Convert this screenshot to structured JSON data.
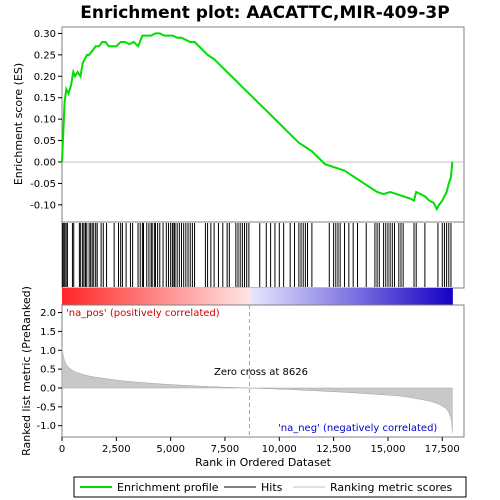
{
  "chart_data": {
    "type": "line",
    "title": "Enrichment plot: AACATTC,MIR-409-3P",
    "es_panel": {
      "ylabel": "Enrichment score (ES)",
      "yticks": [
        0.3,
        0.25,
        0.2,
        0.15,
        0.1,
        0.05,
        0.0,
        -0.05,
        -0.1
      ],
      "ytick_labels": [
        "0.30",
        "0.25",
        "0.20",
        "0.15",
        "0.10",
        "0.05",
        "0.00",
        "-0.05",
        "-0.10"
      ],
      "ylim": [
        -0.14,
        0.315
      ],
      "series": [
        {
          "name": "Enrichment profile",
          "color": "#00dd00",
          "x": [
            0,
            60,
            120,
            200,
            300,
            420,
            520,
            600,
            720,
            850,
            950,
            1050,
            1150,
            1250,
            1400,
            1550,
            1700,
            1850,
            2000,
            2150,
            2300,
            2500,
            2700,
            2900,
            3100,
            3300,
            3500,
            3700,
            3900,
            4100,
            4300,
            4500,
            4700,
            4900,
            5100,
            5300,
            5500,
            5700,
            5900,
            6100,
            6400,
            6700,
            7000,
            7300,
            7600,
            7900,
            8200,
            8500,
            8800,
            9100,
            9400,
            9700,
            10000,
            10300,
            10600,
            10900,
            11200,
            11500,
            11800,
            12100,
            12400,
            12700,
            13000,
            13300,
            13600,
            13900,
            14200,
            14500,
            14800,
            15100,
            15400,
            15700,
            16000,
            16200,
            16300,
            16500,
            16700,
            16900,
            17100,
            17250,
            17350,
            17500,
            17600,
            17700,
            17800,
            17900,
            17960
          ],
          "values": [
            0.0,
            0.07,
            0.14,
            0.17,
            0.16,
            0.18,
            0.21,
            0.2,
            0.21,
            0.2,
            0.23,
            0.24,
            0.25,
            0.25,
            0.26,
            0.27,
            0.27,
            0.28,
            0.28,
            0.27,
            0.27,
            0.27,
            0.28,
            0.28,
            0.275,
            0.28,
            0.27,
            0.295,
            0.295,
            0.295,
            0.3,
            0.3,
            0.295,
            0.295,
            0.295,
            0.29,
            0.29,
            0.285,
            0.28,
            0.28,
            0.265,
            0.25,
            0.24,
            0.225,
            0.21,
            0.195,
            0.18,
            0.165,
            0.15,
            0.135,
            0.12,
            0.105,
            0.09,
            0.075,
            0.06,
            0.045,
            0.035,
            0.025,
            0.01,
            -0.005,
            -0.01,
            -0.015,
            -0.02,
            -0.03,
            -0.04,
            -0.05,
            -0.06,
            -0.07,
            -0.075,
            -0.07,
            -0.075,
            -0.08,
            -0.085,
            -0.09,
            -0.07,
            -0.075,
            -0.08,
            -0.09,
            -0.095,
            -0.11,
            -0.1,
            -0.09,
            -0.08,
            -0.07,
            -0.05,
            -0.035,
            0.0
          ]
        }
      ]
    },
    "hits_panel": {
      "legend_label": "Hits",
      "hit_positions": [
        30,
        80,
        130,
        190,
        250,
        480,
        540,
        800,
        860,
        950,
        1010,
        1080,
        1140,
        1250,
        1320,
        1390,
        1460,
        1550,
        1620,
        1800,
        1900,
        2050,
        2400,
        2600,
        2700,
        2780,
        2950,
        3150,
        3250,
        3500,
        3600,
        3700,
        3750,
        3900,
        4000,
        4100,
        4150,
        4250,
        4300,
        4400,
        4500,
        4650,
        4800,
        4900,
        5000,
        5080,
        5150,
        5200,
        5300,
        5400,
        5500,
        5600,
        5700,
        5800,
        5900,
        6000,
        6100,
        6600,
        6700,
        6850,
        7000,
        7200,
        7400,
        7600,
        7700,
        8000,
        8100,
        8200,
        8300,
        8400,
        8500,
        8600,
        9100,
        9400,
        9600,
        9800,
        10000,
        10200,
        10500,
        10700,
        10900,
        11000,
        11100,
        11200,
        11300,
        11500,
        12300,
        12500,
        12600,
        12700,
        12800,
        13000,
        13200,
        13400,
        13600,
        14000,
        14400,
        14500,
        14600,
        14800,
        14900,
        15000,
        15100,
        15200,
        15300,
        15500,
        15600,
        15700,
        16200,
        16300,
        16700,
        17300,
        17500,
        17600,
        17700,
        17800,
        17900
      ]
    },
    "metric_panel": {
      "ylabel": "Ranked list metric (PreRanked)",
      "legend_label": "Ranking metric scores",
      "yticks": [
        2.0,
        1.5,
        1.0,
        0.5,
        0.0,
        -0.5,
        -1.0
      ],
      "ytick_labels": [
        "2.0",
        "1.5",
        "1.0",
        "0.5",
        "0.0",
        "-0.5",
        "-1.0"
      ],
      "ylim": [
        -1.3,
        2.2
      ],
      "x": [
        0,
        20,
        60,
        120,
        200,
        300,
        450,
        600,
        800,
        1000,
        1300,
        1600,
        2000,
        2500,
        3000,
        3500,
        4000,
        5000,
        6000,
        7000,
        8000,
        8626,
        9500,
        10500,
        11500,
        12500,
        13500,
        14500,
        15500,
        16000,
        16500,
        17000,
        17300,
        17500,
        17700,
        17800,
        17880,
        17930,
        17960
      ],
      "values": [
        1.1,
        1.0,
        0.85,
        0.72,
        0.62,
        0.55,
        0.48,
        0.43,
        0.39,
        0.35,
        0.31,
        0.28,
        0.25,
        0.21,
        0.18,
        0.15,
        0.13,
        0.09,
        0.06,
        0.03,
        0.01,
        0.0,
        -0.02,
        -0.04,
        -0.07,
        -0.1,
        -0.13,
        -0.17,
        -0.21,
        -0.25,
        -0.3,
        -0.36,
        -0.42,
        -0.48,
        -0.56,
        -0.65,
        -0.75,
        -0.9,
        -1.2
      ],
      "zero_cross_label": "Zero cross at 8626",
      "zero_cross": 8626,
      "pos_label": "'na_pos' (positively correlated)",
      "neg_label": "'na_neg' (negatively correlated)"
    },
    "xlabel": "Rank in Ordered Dataset",
    "xticks": [
      0,
      2500,
      5000,
      7500,
      10000,
      12500,
      15000,
      17500
    ],
    "xtick_labels": [
      "0",
      "2,500",
      "5,000",
      "7,500",
      "10,000",
      "12,500",
      "15,000",
      "17,500"
    ],
    "xlim": [
      0,
      18500
    ],
    "legend": [
      "Enrichment profile",
      "Hits",
      "Ranking metric scores"
    ]
  }
}
